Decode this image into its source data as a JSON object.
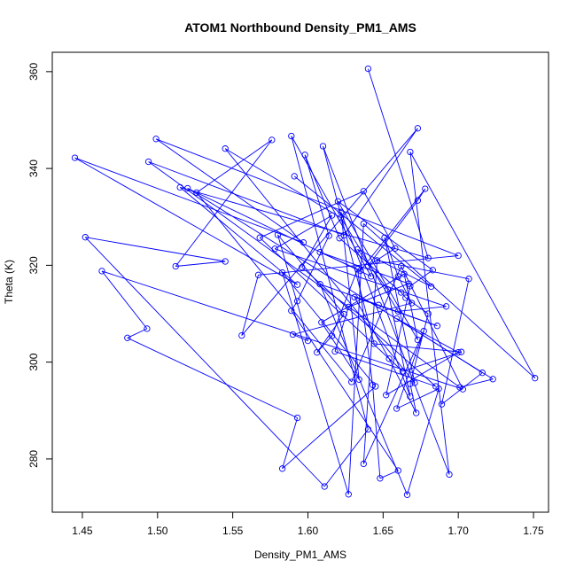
{
  "chart_data": {
    "type": "line",
    "title": "ATOM1 Northbound Density_PM1_AMS",
    "xlabel": "Density_PM1_AMS",
    "ylabel": "Theta (K)",
    "xlim": [
      1.43,
      1.76
    ],
    "ylim": [
      269,
      364
    ],
    "xticks": [
      1.45,
      1.5,
      1.55,
      1.6,
      1.65,
      1.7,
      1.75
    ],
    "xtick_labels": [
      "1.45",
      "1.50",
      "1.55",
      "1.60",
      "1.65",
      "1.70",
      "1.75"
    ],
    "yticks": [
      280,
      300,
      320,
      340,
      360
    ],
    "ytick_labels": [
      "280",
      "300",
      "320",
      "340",
      "360"
    ],
    "grid": false,
    "series": [
      {
        "color": "#0000ff",
        "marker": "open-circle",
        "points": [
          [
            1.64,
            360.6
          ],
          [
            1.68,
            321.5
          ],
          [
            1.515,
            336.1
          ],
          [
            1.593,
            316.0
          ],
          [
            1.445,
            342.2
          ],
          [
            1.597,
            324.7
          ],
          [
            1.499,
            346.1
          ],
          [
            1.7,
            322.0
          ],
          [
            1.567,
            318.0
          ],
          [
            1.556,
            305.5
          ],
          [
            1.673,
            348.3
          ],
          [
            1.624,
            326.2
          ],
          [
            1.494,
            341.4
          ],
          [
            1.701,
            294.8
          ],
          [
            1.723,
            296.5
          ],
          [
            1.52,
            335.9
          ],
          [
            1.642,
            317.7
          ],
          [
            1.589,
            346.7
          ],
          [
            1.64,
            286.1
          ],
          [
            1.611,
            274.3
          ],
          [
            1.452,
            325.8
          ],
          [
            1.545,
            320.8
          ],
          [
            1.512,
            319.8
          ],
          [
            1.576,
            345.9
          ],
          [
            1.526,
            335.0
          ],
          [
            1.629,
            295.9
          ],
          [
            1.662,
            319.8
          ],
          [
            1.703,
            294.4
          ],
          [
            1.463,
            318.8
          ],
          [
            1.493,
            306.9
          ],
          [
            1.48,
            305.0
          ],
          [
            1.593,
            288.5
          ],
          [
            1.583,
            278.0
          ],
          [
            1.645,
            295.0
          ],
          [
            1.583,
            318.5
          ],
          [
            1.627,
            272.7
          ],
          [
            1.637,
            328.6
          ],
          [
            1.751,
            296.7
          ],
          [
            1.668,
            343.4
          ],
          [
            1.694,
            276.8
          ],
          [
            1.61,
            344.6
          ],
          [
            1.644,
            303.8
          ],
          [
            1.702,
            302.1
          ],
          [
            1.663,
            298.1
          ],
          [
            1.568,
            325.7
          ],
          [
            1.637,
            335.3
          ],
          [
            1.658,
            323.5
          ],
          [
            1.64,
            319.9
          ],
          [
            1.673,
            333.4
          ],
          [
            1.678,
            335.8
          ],
          [
            1.635,
            318.9
          ],
          [
            1.608,
            322.7
          ],
          [
            1.667,
            316.2
          ],
          [
            1.627,
            311.4
          ],
          [
            1.618,
            302.2
          ],
          [
            1.685,
            295.0
          ],
          [
            1.596,
            319.6
          ],
          [
            1.616,
            330.3
          ],
          [
            1.578,
            323.4
          ],
          [
            1.692,
            311.5
          ],
          [
            1.66,
            310.5
          ],
          [
            1.622,
            329.8
          ],
          [
            1.545,
            344.1
          ],
          [
            1.671,
            295.7
          ],
          [
            1.651,
            325.7
          ],
          [
            1.66,
            317.7
          ],
          [
            1.669,
            312.2
          ],
          [
            1.59,
            305.7
          ],
          [
            1.6,
            304.4
          ],
          [
            1.58,
            326.3
          ],
          [
            1.624,
            309.9
          ],
          [
            1.606,
            302.0
          ],
          [
            1.616,
            305.4
          ],
          [
            1.633,
            319.2
          ],
          [
            1.643,
            295.3
          ],
          [
            1.648,
            276.0
          ],
          [
            1.66,
            277.6
          ],
          [
            1.589,
            310.6
          ],
          [
            1.593,
            312.6
          ],
          [
            1.614,
            326.1
          ],
          [
            1.598,
            342.8
          ],
          [
            1.621,
            325.6
          ],
          [
            1.662,
            314.4
          ],
          [
            1.665,
            313.3
          ],
          [
            1.68,
            310.0
          ],
          [
            1.668,
            295.5
          ],
          [
            1.672,
            289.5
          ],
          [
            1.654,
            300.7
          ],
          [
            1.631,
            313.4
          ],
          [
            1.686,
            307.5
          ],
          [
            1.647,
            311.8
          ],
          [
            1.608,
            316.1
          ],
          [
            1.666,
            272.6
          ],
          [
            1.687,
            294.5
          ],
          [
            1.659,
            290.4
          ],
          [
            1.677,
            306.4
          ],
          [
            1.637,
            279.0
          ],
          [
            1.646,
            321.0
          ],
          [
            1.707,
            317.2
          ],
          [
            1.689,
            291.3
          ],
          [
            1.716,
            297.8
          ],
          [
            1.659,
            309.0
          ],
          [
            1.7,
            302.0
          ],
          [
            1.652,
            293.2
          ],
          [
            1.668,
            315.7
          ],
          [
            1.683,
            319.0
          ],
          [
            1.62,
            333.2
          ],
          [
            1.673,
            304.6
          ],
          [
            1.664,
            318.2
          ],
          [
            1.609,
            308.2
          ],
          [
            1.634,
            296.4
          ],
          [
            1.622,
            331.0
          ],
          [
            1.668,
            292.9
          ],
          [
            1.653,
            315.0
          ],
          [
            1.633,
            323.3
          ],
          [
            1.682,
            315.6
          ],
          [
            1.591,
            338.4
          ]
        ]
      }
    ]
  }
}
